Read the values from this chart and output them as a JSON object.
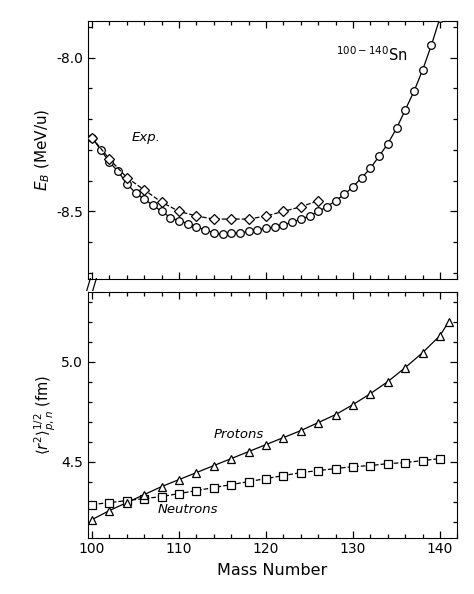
{
  "upper_ylim": [
    -8.72,
    -7.88
  ],
  "upper_yticks": [
    -8.5,
    -8.0
  ],
  "lower_ylim": [
    4.12,
    5.35
  ],
  "lower_yticks": [
    4.5,
    5.0
  ],
  "xlim": [
    99.5,
    142
  ],
  "xticks": [
    100,
    110,
    120,
    130,
    140
  ],
  "eb_theory_x": [
    100,
    101,
    102,
    103,
    104,
    105,
    106,
    107,
    108,
    109,
    110,
    111,
    112,
    113,
    114,
    115,
    116,
    117,
    118,
    119,
    120,
    121,
    122,
    123,
    124,
    125,
    126,
    127,
    128,
    129,
    130,
    131,
    132,
    133,
    134,
    135,
    136,
    137,
    138,
    139,
    140,
    141
  ],
  "eb_theory_y": [
    -8.26,
    -8.3,
    -8.34,
    -8.37,
    -8.41,
    -8.44,
    -8.46,
    -8.48,
    -8.5,
    -8.52,
    -8.53,
    -8.54,
    -8.55,
    -8.56,
    -8.57,
    -8.575,
    -8.57,
    -8.57,
    -8.565,
    -8.56,
    -8.555,
    -8.55,
    -8.545,
    -8.535,
    -8.525,
    -8.515,
    -8.5,
    -8.485,
    -8.465,
    -8.445,
    -8.42,
    -8.39,
    -8.36,
    -8.32,
    -8.28,
    -8.23,
    -8.17,
    -8.11,
    -8.04,
    -7.96,
    -7.87,
    -7.78
  ],
  "eb_exp_x": [
    100,
    102,
    104,
    106,
    108,
    110,
    112,
    114,
    116,
    118,
    120,
    122,
    124,
    126
  ],
  "eb_exp_y": [
    -8.26,
    -8.33,
    -8.39,
    -8.43,
    -8.47,
    -8.5,
    -8.515,
    -8.525,
    -8.525,
    -8.525,
    -8.515,
    -8.5,
    -8.485,
    -8.465
  ],
  "proton_x": [
    100,
    102,
    104,
    106,
    108,
    110,
    112,
    114,
    116,
    118,
    120,
    122,
    124,
    126,
    128,
    130,
    132,
    134,
    136,
    138,
    140
  ],
  "proton_y": [
    4.285,
    4.295,
    4.305,
    4.315,
    4.325,
    4.34,
    4.355,
    4.37,
    4.385,
    4.4,
    4.415,
    4.43,
    4.445,
    4.455,
    4.465,
    4.475,
    4.48,
    4.49,
    4.495,
    4.505,
    4.515
  ],
  "neutron_x": [
    100,
    102,
    104,
    106,
    108,
    110,
    112,
    114,
    116,
    118,
    120,
    122,
    124,
    126,
    128,
    130,
    132,
    134,
    136,
    138,
    140,
    141
  ],
  "neutron_y": [
    4.21,
    4.255,
    4.295,
    4.335,
    4.375,
    4.41,
    4.445,
    4.48,
    4.515,
    4.55,
    4.585,
    4.62,
    4.655,
    4.695,
    4.735,
    4.785,
    4.84,
    4.9,
    4.97,
    5.045,
    5.13,
    5.2
  ],
  "bg_color": "#ffffff",
  "line_color": "#000000"
}
